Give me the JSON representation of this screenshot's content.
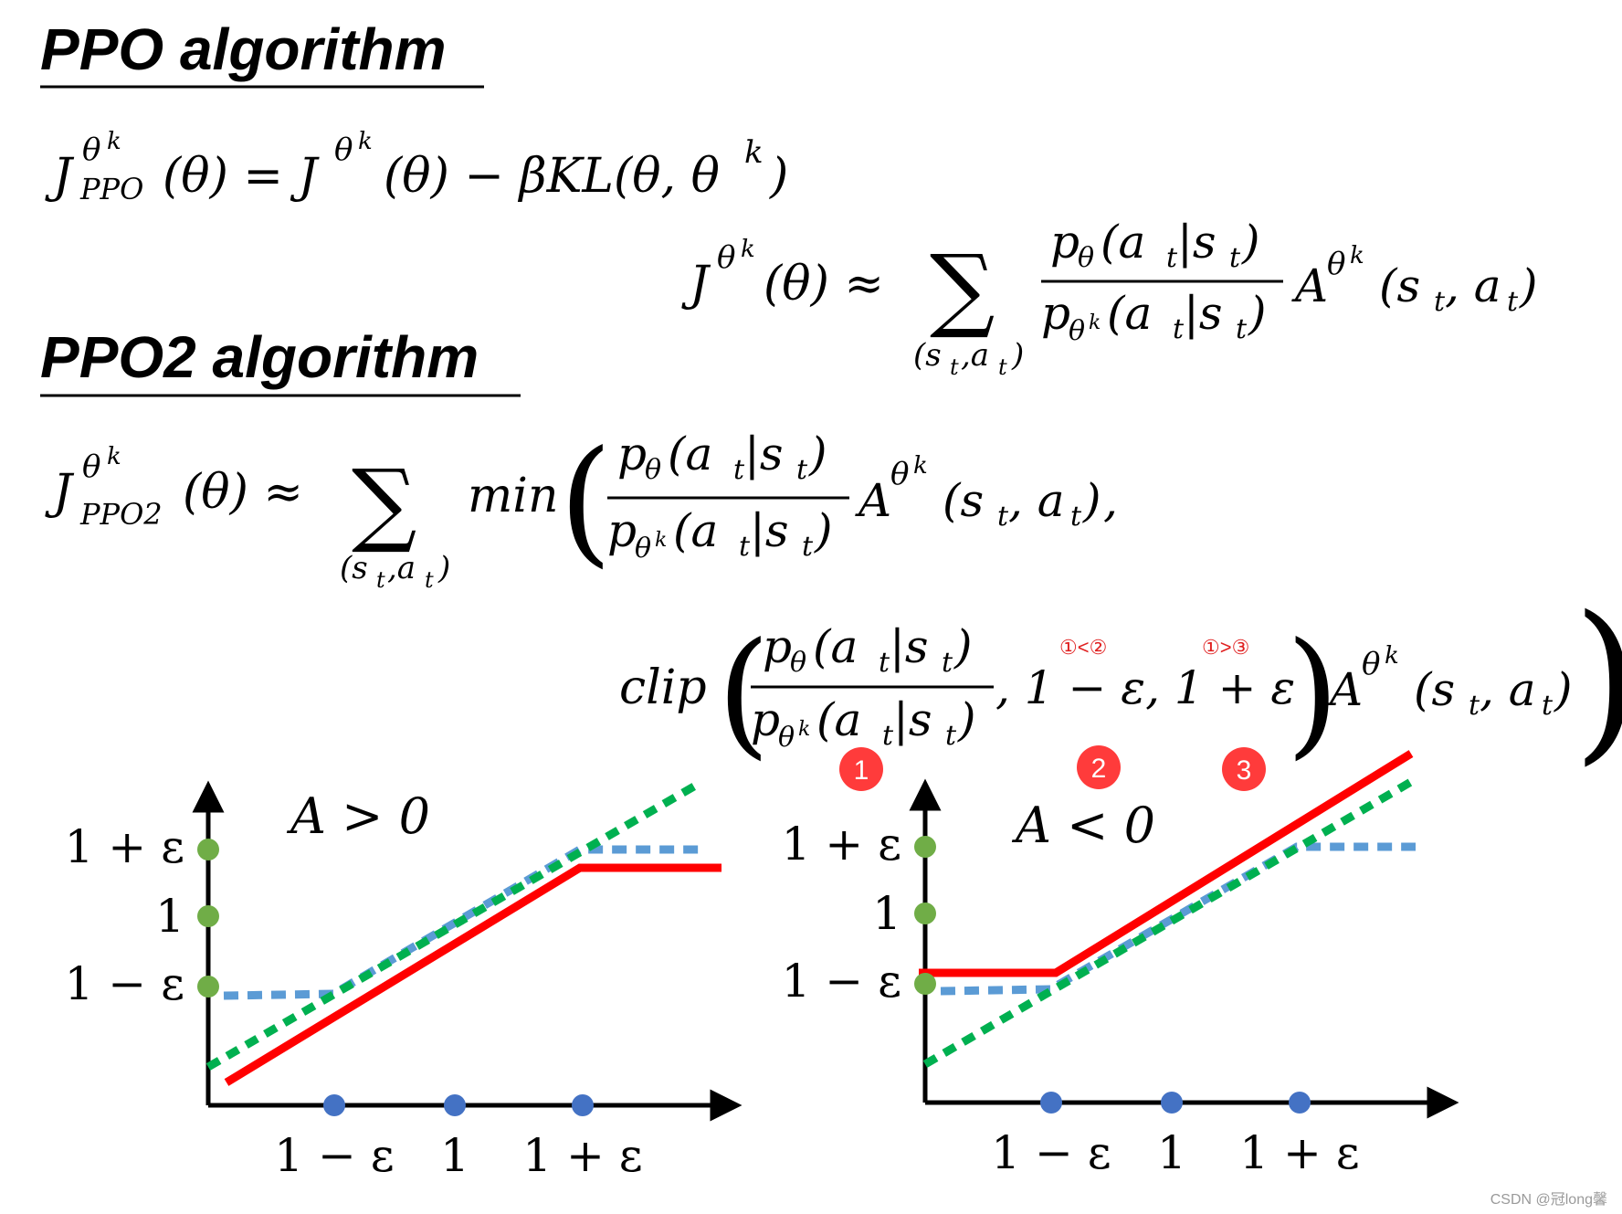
{
  "headings": {
    "ppo": "PPO algorithm",
    "ppo2": "PPO2 algorithm"
  },
  "formulas": {
    "eq1_lhs": "J",
    "eq1_lhs_sup": "θ",
    "eq1_lhs_supsup": "k",
    "eq1_lhs_sub": "PPO",
    "eq1_rhs": "(θ) = J",
    "eq1_rhs_sup": "θ",
    "eq1_rhs_supsup": "k",
    "eq1_rhs_tail": "(θ) − βKL(θ, θ",
    "eq1_tail_sup": "k",
    "eq1_close": ")",
    "eq2_lhs": "J",
    "eq2_lhs_sup": "θ",
    "eq2_lhs_supsup": "k",
    "eq2_mid": "(θ) ≈",
    "sigma": "∑",
    "sum_sub": "(s",
    "sum_sub_t": "t",
    "sum_sub_a": ",a",
    "sum_sub_close": ")",
    "num": "p",
    "num_sub": "θ",
    "num_arg": "(a",
    "num_arg_t": "t",
    "num_arg_s": "|s",
    "num_arg_close": ")",
    "den": "p",
    "den_sub": "θ",
    "den_subsup": "k",
    "adv": "A",
    "adv_sup": "θ",
    "adv_supsup": "k",
    "adv_arg": "(s",
    "adv_arg_a": ", a",
    "adv_close": ")",
    "eq3_lhs": "J",
    "eq3_sub": "PPO2",
    "eq3_mid": "(θ)  ≈",
    "min": "min",
    "clip": "clip",
    "clip_lo": ", 1 − ε, 1 + ε",
    "comma": ","
  },
  "annotations": {
    "cmp_left": "①<②",
    "cmp_right": "①>③",
    "badges": [
      "1",
      "2",
      "3"
    ]
  },
  "plots": [
    {
      "condition": "A > 0",
      "y_ticks": [
        "1 + ε",
        "1",
        "1 − ε"
      ],
      "x_ticks": [
        "1 − ε",
        "1",
        "1 + ε"
      ]
    },
    {
      "condition": "A < 0",
      "y_ticks": [
        "1 + ε",
        "1",
        "1 − ε"
      ],
      "x_ticks": [
        "1 − ε",
        "1",
        "1 + ε"
      ]
    }
  ],
  "colors": {
    "clipped_objective": "#ff0000",
    "clip_function": "#5b9bd5",
    "unclipped_objective": "#00b050",
    "tick_marker_y": "#70ad47",
    "tick_marker_x": "#4472c4",
    "badge": "#ff3b3b"
  },
  "watermark": "CSDN @冠long馨"
}
